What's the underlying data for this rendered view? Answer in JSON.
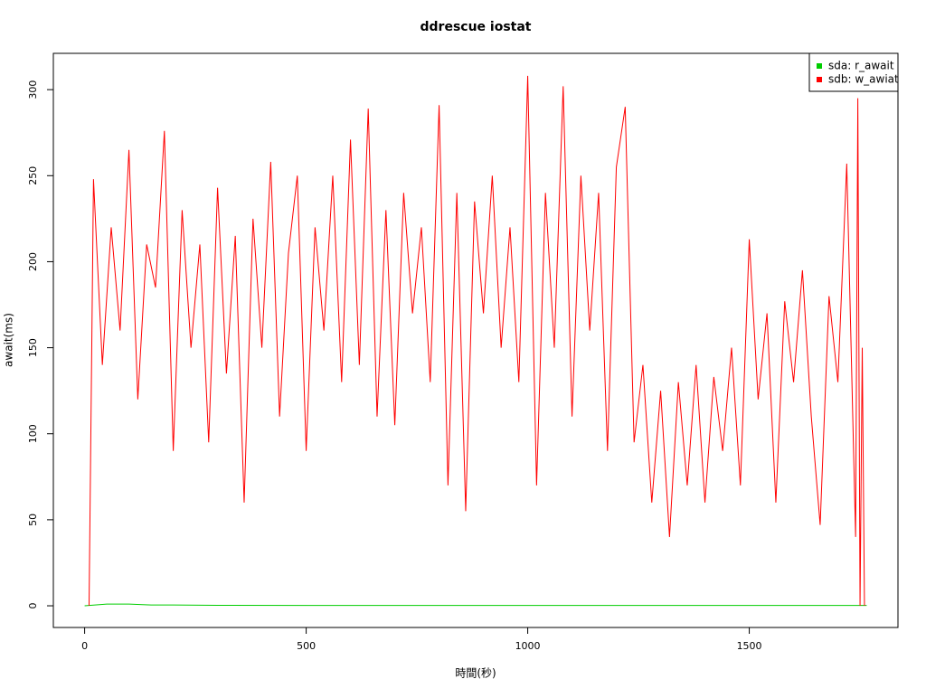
{
  "chart_data": {
    "type": "line",
    "title": "ddrescue iostat",
    "x_label": "時間(秒)",
    "y_label": "await(ms)",
    "xlim": [
      -70.6,
      1835.6
    ],
    "ylim": [
      -12.6,
      321.1
    ],
    "xticks": [
      0,
      500,
      1000,
      1500
    ],
    "yticks": [
      0,
      50,
      100,
      150,
      200,
      250,
      300
    ],
    "legend": "top-right",
    "series": [
      {
        "name": "sda: r_await",
        "color": "#00cd00",
        "x": [
          0,
          50,
          100,
          150,
          200,
          300,
          500,
          1000,
          1500,
          1765
        ],
        "values": [
          0,
          1,
          1,
          0.5,
          0.5,
          0.3,
          0.2,
          0.2,
          0.2,
          0.2
        ]
      },
      {
        "name": "sdb: w_awiat",
        "color": "#ff0000",
        "x": [
          10,
          20,
          40,
          60,
          80,
          100,
          120,
          140,
          160,
          180,
          200,
          220,
          240,
          260,
          280,
          300,
          320,
          340,
          360,
          380,
          400,
          420,
          440,
          460,
          480,
          500,
          520,
          540,
          560,
          580,
          600,
          620,
          640,
          660,
          680,
          700,
          720,
          740,
          760,
          780,
          800,
          820,
          840,
          860,
          880,
          900,
          920,
          940,
          960,
          980,
          1000,
          1020,
          1040,
          1060,
          1080,
          1100,
          1120,
          1140,
          1160,
          1180,
          1200,
          1220,
          1240,
          1260,
          1280,
          1300,
          1320,
          1340,
          1360,
          1380,
          1400,
          1420,
          1440,
          1460,
          1480,
          1500,
          1520,
          1540,
          1560,
          1580,
          1600,
          1620,
          1640,
          1660,
          1680,
          1700,
          1720,
          1740,
          1745,
          1750,
          1755,
          1760
        ],
        "values": [
          0,
          248,
          140,
          220,
          160,
          265,
          120,
          210,
          185,
          276,
          90,
          230,
          150,
          210,
          95,
          243,
          135,
          215,
          60,
          225,
          150,
          258,
          110,
          205,
          250,
          90,
          220,
          160,
          250,
          130,
          271,
          140,
          289,
          110,
          230,
          105,
          240,
          170,
          220,
          130,
          291,
          70,
          240,
          55,
          235,
          170,
          250,
          150,
          220,
          130,
          308,
          70,
          240,
          150,
          302,
          110,
          250,
          160,
          240,
          90,
          255,
          290,
          95,
          140,
          60,
          125,
          40,
          130,
          70,
          140,
          60,
          133,
          90,
          150,
          70,
          213,
          120,
          170,
          60,
          177,
          130,
          195,
          110,
          47,
          180,
          130,
          257,
          40,
          295,
          0,
          150,
          0
        ]
      }
    ]
  }
}
